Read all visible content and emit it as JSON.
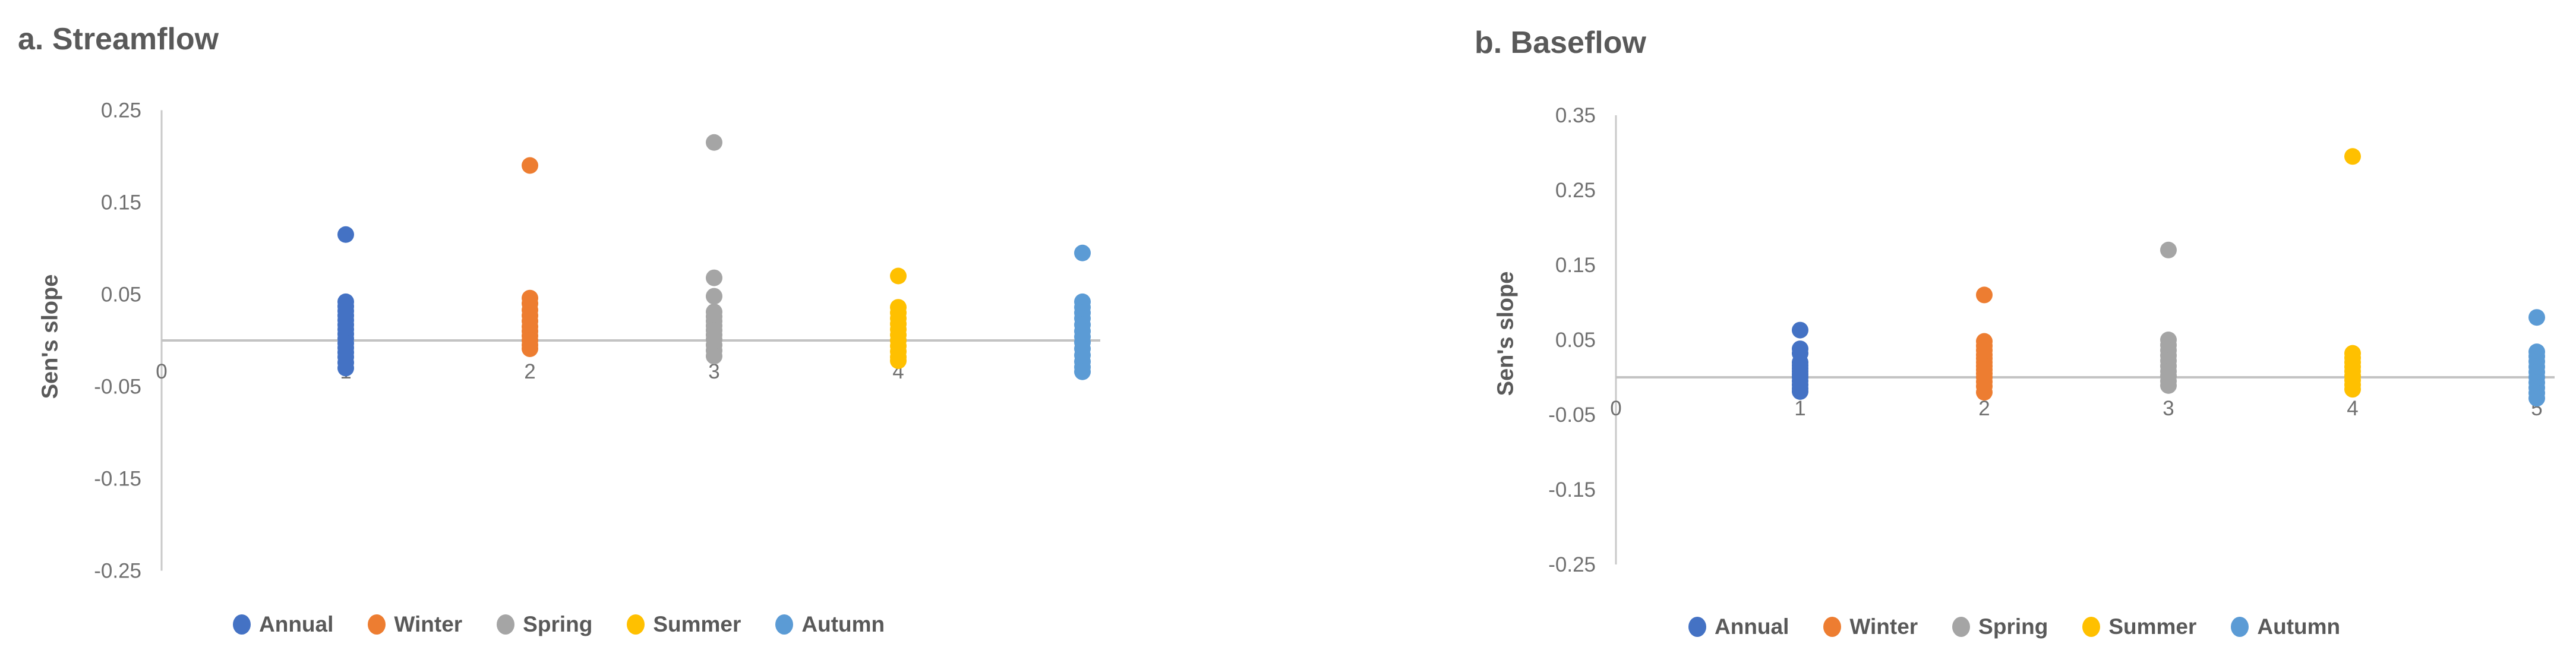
{
  "page": {
    "background": "#ffffff"
  },
  "colors": {
    "text": "#595959",
    "tick_text": "#707070",
    "axis_line": "#c9c9c9",
    "zero_line": "#c3c3c3"
  },
  "series_colors": {
    "Annual": "#4472C4",
    "Winter": "#ED7D31",
    "Spring": "#A5A5A5",
    "Summer": "#FFC000",
    "Autumn": "#5B9BD5"
  },
  "legend_labels": [
    "Annual",
    "Winter",
    "Spring",
    "Summer",
    "Autumn"
  ],
  "chart_data": [
    {
      "id": "streamflow",
      "type": "scatter",
      "title": "a. Streamflow",
      "ylabel": "Sen's slope",
      "xlabel": "",
      "x_tick_labels": [
        "0",
        "1",
        "2",
        "3",
        "4",
        "5"
      ],
      "y_tick_labels": [
        "0.25",
        "0.15",
        "0.05",
        "-0.05",
        "-0.15",
        "-0.25"
      ],
      "y_ticks": [
        0.25,
        0.15,
        0.05,
        -0.05,
        -0.15,
        -0.25
      ],
      "ylim": [
        -0.25,
        0.25
      ],
      "xlim": [
        0,
        5.2
      ],
      "zero_line": true,
      "grid": false,
      "legend_position": "bottom",
      "series": [
        {
          "name": "Annual",
          "x": 1,
          "values": [
            0.115,
            0.042,
            0.037,
            0.032,
            0.027,
            0.022,
            0.017,
            0.012,
            0.007,
            0.002,
            -0.003,
            -0.008,
            -0.013,
            -0.018,
            -0.024,
            -0.03
          ]
        },
        {
          "name": "Winter",
          "x": 2,
          "values": [
            0.19,
            0.046,
            0.04,
            0.033,
            0.027,
            0.021,
            0.015,
            0.01,
            0.005,
            0.0,
            -0.005,
            -0.009
          ]
        },
        {
          "name": "Spring",
          "x": 3,
          "values": [
            0.215,
            0.068,
            0.048,
            0.031,
            0.026,
            0.021,
            0.016,
            0.011,
            0.006,
            0.001,
            -0.005,
            -0.011,
            -0.017
          ]
        },
        {
          "name": "Summer",
          "x": 4,
          "values": [
            0.07,
            0.036,
            0.03,
            0.024,
            0.018,
            0.012,
            0.006,
            0.0,
            -0.006,
            -0.012,
            -0.018,
            -0.022
          ]
        },
        {
          "name": "Autumn",
          "x": 5,
          "values": [
            0.095,
            0.042,
            0.036,
            0.03,
            0.024,
            0.017,
            0.01,
            0.004,
            -0.002,
            -0.009,
            -0.016,
            -0.023,
            -0.029,
            -0.034
          ]
        }
      ]
    },
    {
      "id": "baseflow",
      "type": "scatter",
      "title": "b. Baseflow",
      "ylabel": "Sen's slope",
      "xlabel": "",
      "x_tick_labels": [
        "0",
        "1",
        "2",
        "3",
        "4",
        "5"
      ],
      "y_tick_labels": [
        "0.35",
        "0.25",
        "0.15",
        "0.05",
        "-0.05",
        "-0.15",
        "-0.25"
      ],
      "y_ticks": [
        0.35,
        0.25,
        0.15,
        0.05,
        -0.05,
        -0.15,
        -0.25
      ],
      "ylim": [
        -0.25,
        0.35
      ],
      "xlim": [
        0,
        5.2
      ],
      "zero_line": true,
      "grid": false,
      "legend_position": "bottom",
      "series": [
        {
          "name": "Annual",
          "x": 1,
          "values": [
            0.063,
            0.038,
            0.032,
            0.02,
            0.016,
            0.012,
            0.008,
            0.004,
            0.0,
            -0.005,
            -0.01,
            -0.015,
            -0.019
          ]
        },
        {
          "name": "Winter",
          "x": 2,
          "values": [
            0.11,
            0.048,
            0.042,
            0.036,
            0.03,
            0.025,
            0.02,
            0.015,
            0.01,
            0.005,
            0.0,
            -0.006,
            -0.012,
            -0.02
          ]
        },
        {
          "name": "Spring",
          "x": 3,
          "values": [
            0.17,
            0.05,
            0.043,
            0.036,
            0.029,
            0.022,
            0.015,
            0.008,
            0.002,
            -0.005,
            -0.011
          ]
        },
        {
          "name": "Summer",
          "x": 4,
          "values": [
            0.295,
            0.032,
            0.026,
            0.02,
            0.014,
            0.008,
            0.002,
            -0.004,
            -0.01,
            -0.016
          ]
        },
        {
          "name": "Autumn",
          "x": 5,
          "values": [
            0.08,
            0.034,
            0.028,
            0.021,
            0.014,
            0.007,
            0.0,
            -0.007,
            -0.014,
            -0.021,
            -0.028
          ]
        }
      ]
    }
  ]
}
